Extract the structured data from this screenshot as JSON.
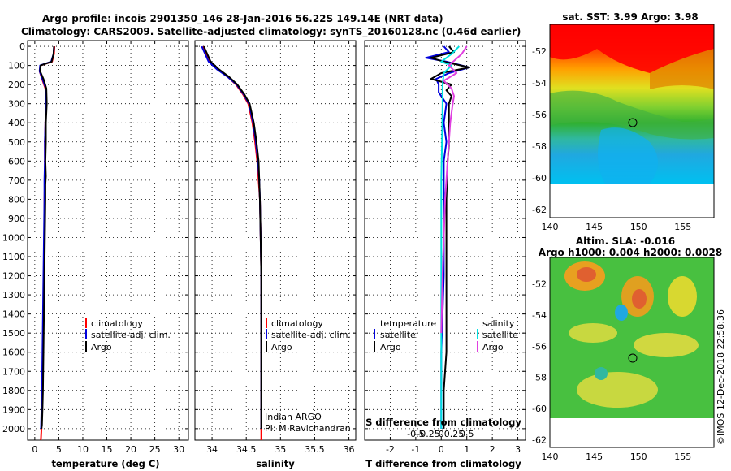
{
  "titles": {
    "line1": "Argo profile: incois 2901350_146 28-Jan-2016 56.22S 149.14E (NRT data)",
    "line2": "Climatology: CARS2009. Satellite-adjusted climatology: synTS_20160128.nc (0.46d earlier)"
  },
  "colors": {
    "climatology": "#ff0000",
    "satellite": "#0000dd",
    "argo": "#000000",
    "sat_salinity": "#00e0e0",
    "argo_salinity": "#e040e0"
  },
  "watermark": "©IMOS 12-Dec-2018 22:58:36",
  "credit": {
    "line1": "Indian ARGO",
    "line2": "PI: M Ravichandran"
  },
  "chart_data": [
    {
      "type": "line",
      "id": "temperature",
      "xlabel": "temperature (deg C)",
      "ylabel": "",
      "xlim": [
        -1.5,
        32
      ],
      "ylim": [
        2060,
        -30
      ],
      "xticks": [
        0,
        5,
        10,
        15,
        20,
        25,
        30
      ],
      "yticks": [
        0,
        100,
        200,
        300,
        400,
        500,
        600,
        700,
        800,
        900,
        1000,
        1100,
        1200,
        1300,
        1400,
        1500,
        1600,
        1700,
        1800,
        1900,
        2000
      ],
      "legend": [
        "climatology",
        "satellite-adj. clim.",
        "Argo"
      ],
      "series": [
        {
          "name": "climatology",
          "color": "#ff0000",
          "x": [
            4.1,
            4.0,
            3.6,
            1.2,
            1.0,
            1.5,
            2.2,
            2.3,
            2.2,
            2.1,
            2.1,
            2.1,
            2.0,
            2.0,
            1.9,
            1.8,
            1.7,
            1.6,
            1.5,
            1.4,
            1.3,
            1.2
          ],
          "y": [
            0,
            40,
            80,
            100,
            130,
            170,
            220,
            300,
            400,
            500,
            600,
            700,
            800,
            1000,
            1200,
            1400,
            1600,
            1800,
            1900,
            2000,
            2050,
            2060
          ]
        },
        {
          "name": "satellite-adj. clim.",
          "color": "#0000dd",
          "x": [
            4.0,
            3.9,
            3.4,
            1.1,
            1.0,
            1.6,
            2.3,
            2.3,
            2.2,
            2.1,
            2.1,
            2.0,
            2.0,
            1.9,
            1.8,
            1.7,
            1.6,
            1.5,
            1.4,
            1.3
          ],
          "y": [
            0,
            40,
            80,
            100,
            130,
            170,
            220,
            300,
            400,
            500,
            600,
            700,
            800,
            1000,
            1200,
            1400,
            1600,
            1800,
            1900,
            2000
          ]
        },
        {
          "name": "Argo",
          "color": "#000000",
          "x": [
            4.0,
            3.9,
            3.5,
            1.2,
            1.1,
            1.8,
            2.4,
            2.5,
            2.3,
            2.3,
            2.2,
            2.3,
            2.2,
            2.2,
            2.1,
            2.0,
            1.9,
            1.8,
            1.7,
            1.6,
            1.5,
            1.4
          ],
          "y": [
            0,
            40,
            80,
            100,
            130,
            170,
            220,
            300,
            400,
            500,
            600,
            680,
            720,
            800,
            1000,
            1200,
            1400,
            1600,
            1800,
            1900,
            1980,
            2000
          ]
        }
      ]
    },
    {
      "type": "line",
      "id": "salinity",
      "xlabel": "salinity",
      "ylabel": "",
      "xlim": [
        33.75,
        36.1
      ],
      "ylim": [
        2060,
        -30
      ],
      "xticks": [
        34,
        34.5,
        35,
        35.5,
        36
      ],
      "legend": [
        "climatology",
        "satellite-adj. clim.",
        "Argo"
      ],
      "series": [
        {
          "name": "climatology",
          "color": "#ff0000",
          "x": [
            33.87,
            33.92,
            33.97,
            34.08,
            34.23,
            34.35,
            34.45,
            34.53,
            34.59,
            34.63,
            34.66,
            34.68,
            34.7,
            34.71,
            34.72,
            34.72,
            34.72,
            34.72
          ],
          "y": [
            0,
            40,
            80,
            120,
            160,
            200,
            250,
            300,
            400,
            500,
            600,
            700,
            800,
            1000,
            1200,
            1500,
            1800,
            2060
          ]
        },
        {
          "name": "satellite-adj. clim.",
          "color": "#0000dd",
          "x": [
            33.85,
            33.9,
            33.95,
            34.07,
            34.23,
            34.36,
            34.46,
            34.54,
            34.6,
            34.64,
            34.67,
            34.69,
            34.7,
            34.71,
            34.72,
            34.72,
            34.72,
            34.72
          ],
          "y": [
            0,
            40,
            80,
            120,
            160,
            200,
            250,
            300,
            400,
            500,
            600,
            700,
            800,
            1000,
            1200,
            1500,
            1800,
            2000
          ]
        },
        {
          "name": "Argo",
          "color": "#000000",
          "x": [
            33.88,
            33.93,
            33.98,
            34.1,
            34.25,
            34.37,
            34.47,
            34.55,
            34.61,
            34.65,
            34.68,
            34.69,
            34.7,
            34.71,
            34.72,
            34.72,
            34.72,
            34.72
          ],
          "y": [
            0,
            40,
            80,
            120,
            160,
            200,
            250,
            300,
            400,
            500,
            600,
            700,
            800,
            1000,
            1200,
            1500,
            1800,
            2000
          ]
        }
      ]
    },
    {
      "type": "line",
      "id": "difference",
      "xlabel": "T difference from climatology",
      "xlabel2": "S difference from climatology",
      "xlim": [
        -3,
        3.3
      ],
      "ylim": [
        2060,
        -30
      ],
      "xticks": [
        -2,
        -1,
        0,
        1,
        2,
        3
      ],
      "xticks2": [
        -0.5,
        -0.25,
        0,
        0.25,
        0.5
      ],
      "xticks2_labels": [
        "-0.5",
        "-0.25",
        "0",
        "0.25",
        "0.5"
      ],
      "legend_left": [
        "temperature",
        "satellite",
        "Argo"
      ],
      "legend_right": [
        "salinity",
        "satellite",
        "Argo"
      ],
      "series": [
        {
          "name": "T satellite",
          "color": "#0000dd",
          "x": [
            0.1,
            0.3,
            -0.6,
            0.2,
            1.1,
            0.3,
            -0.2,
            -0.1,
            -0.1,
            0.2,
            0.1,
            0.2,
            0.1,
            0.1,
            0.1,
            0.1,
            0.05,
            0.0,
            0.0,
            0.0
          ],
          "y": [
            0,
            30,
            60,
            80,
            110,
            140,
            170,
            200,
            240,
            300,
            400,
            500,
            600,
            800,
            1000,
            1200,
            1400,
            1600,
            1800,
            2000
          ]
        },
        {
          "name": "T Argo",
          "color": "#000000",
          "x": [
            0.3,
            0.5,
            -0.4,
            0.1,
            1.1,
            0.0,
            -0.4,
            0.4,
            0.2,
            0.4,
            0.3,
            0.3,
            0.3,
            0.25,
            0.2,
            0.2,
            0.2,
            0.2,
            0.2,
            0.1,
            0.1
          ],
          "y": [
            0,
            30,
            60,
            80,
            110,
            140,
            170,
            200,
            230,
            260,
            300,
            400,
            520,
            600,
            800,
            1000,
            1200,
            1400,
            1600,
            1800,
            2000
          ]
        },
        {
          "name": "S satellite",
          "color": "#00e0e0",
          "x": [
            0.7,
            0.4,
            0.0,
            0.4,
            0.1,
            0.05,
            0.05,
            0.03,
            0.0,
            0.0,
            0.0,
            0.0,
            0.0,
            0.0,
            0.0
          ],
          "y": [
            0,
            40,
            80,
            100,
            140,
            200,
            300,
            500,
            700,
            1000,
            1200,
            1500,
            1800,
            1900,
            2000
          ]
        },
        {
          "name": "S Argo",
          "color": "#e040e0",
          "x": [
            1.0,
            0.8,
            0.3,
            0.6,
            0.1,
            0.4,
            0.5,
            0.45,
            0.35,
            0.3,
            0.25,
            0.2,
            0.15,
            0.1,
            0.05,
            0.0
          ],
          "y": [
            0,
            40,
            100,
            140,
            180,
            220,
            260,
            300,
            400,
            500,
            600,
            700,
            800,
            1000,
            1200,
            1500
          ]
        }
      ]
    },
    {
      "type": "heatmap",
      "id": "sst-map",
      "title": "sat. SST: 3.99 Argo: 3.98",
      "xticks": [
        140,
        145,
        150,
        155
      ],
      "yticks": [
        -52,
        -54,
        -56,
        -58,
        -60,
        -62
      ],
      "xlim": [
        140,
        158.5
      ],
      "ylim": [
        -62.5,
        -50.3
      ],
      "marker": {
        "lon": 149.14,
        "lat": -56.22
      }
    },
    {
      "type": "heatmap",
      "id": "sla-map",
      "title": "Altim. SLA: -0.016",
      "subtitle": "Argo h1000: 0.004 h2000: 0.0028",
      "xticks": [
        140,
        145,
        150,
        155
      ],
      "yticks": [
        -52,
        -54,
        -56,
        -58,
        -60,
        -62
      ],
      "xlim": [
        140,
        158.5
      ],
      "ylim": [
        -62.5,
        -50.3
      ],
      "marker": {
        "lon": 149.14,
        "lat": -56.22
      }
    }
  ]
}
